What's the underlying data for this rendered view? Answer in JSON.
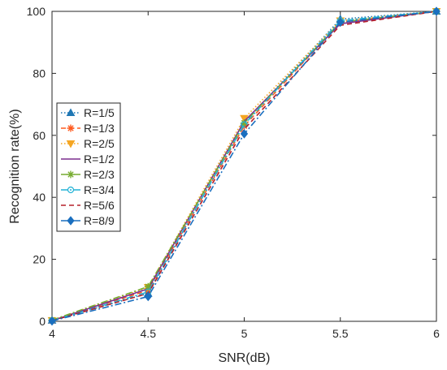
{
  "chart_data": {
    "type": "line",
    "title": "",
    "xlabel": "SNR(dB)",
    "ylabel": "Recognition rate(%)",
    "x": [
      4,
      4.5,
      5,
      5.5,
      6
    ],
    "xlim": [
      4,
      6
    ],
    "ylim": [
      0,
      100
    ],
    "xticks": [
      "4",
      "4.5",
      "5",
      "5.5",
      "6"
    ],
    "yticks": [
      "0",
      "20",
      "40",
      "60",
      "80",
      "100"
    ],
    "grid": false,
    "legend_position": "left-center",
    "series": [
      {
        "name": "R=1/5",
        "values": [
          0.3,
          9.0,
          64.0,
          97.5,
          100
        ],
        "color": "#1f77b4",
        "dash": "dotted",
        "marker": "triangle-up"
      },
      {
        "name": "R=1/3",
        "values": [
          0.2,
          10.0,
          63.0,
          96.5,
          100
        ],
        "color": "#ff5a1f",
        "dash": "dashed",
        "marker": "asterisk"
      },
      {
        "name": "R=2/5",
        "values": [
          0.3,
          11.0,
          65.5,
          97.0,
          100
        ],
        "color": "#f5a623",
        "dash": "dotted",
        "marker": "triangle-down"
      },
      {
        "name": "R=1/2",
        "values": [
          0.2,
          10.5,
          64.5,
          96.0,
          100
        ],
        "color": "#7b2d8e",
        "dash": "solid",
        "marker": "none"
      },
      {
        "name": "R=2/3",
        "values": [
          0.4,
          11.2,
          64.0,
          96.5,
          100
        ],
        "color": "#77ac30",
        "dash": "dashdot",
        "marker": "star"
      },
      {
        "name": "R=3/4",
        "values": [
          0.2,
          9.5,
          63.5,
          97.0,
          100
        ],
        "color": "#20b2d6",
        "dash": "dashdot",
        "marker": "circle"
      },
      {
        "name": "R=5/6",
        "values": [
          0.2,
          9.0,
          62.0,
          95.5,
          100
        ],
        "color": "#b5202a",
        "dash": "dashed",
        "marker": "none"
      },
      {
        "name": "R=8/9",
        "values": [
          0.1,
          8.0,
          60.5,
          96.5,
          100
        ],
        "color": "#1a6fbf",
        "dash": "dashdot",
        "marker": "diamond"
      }
    ]
  }
}
